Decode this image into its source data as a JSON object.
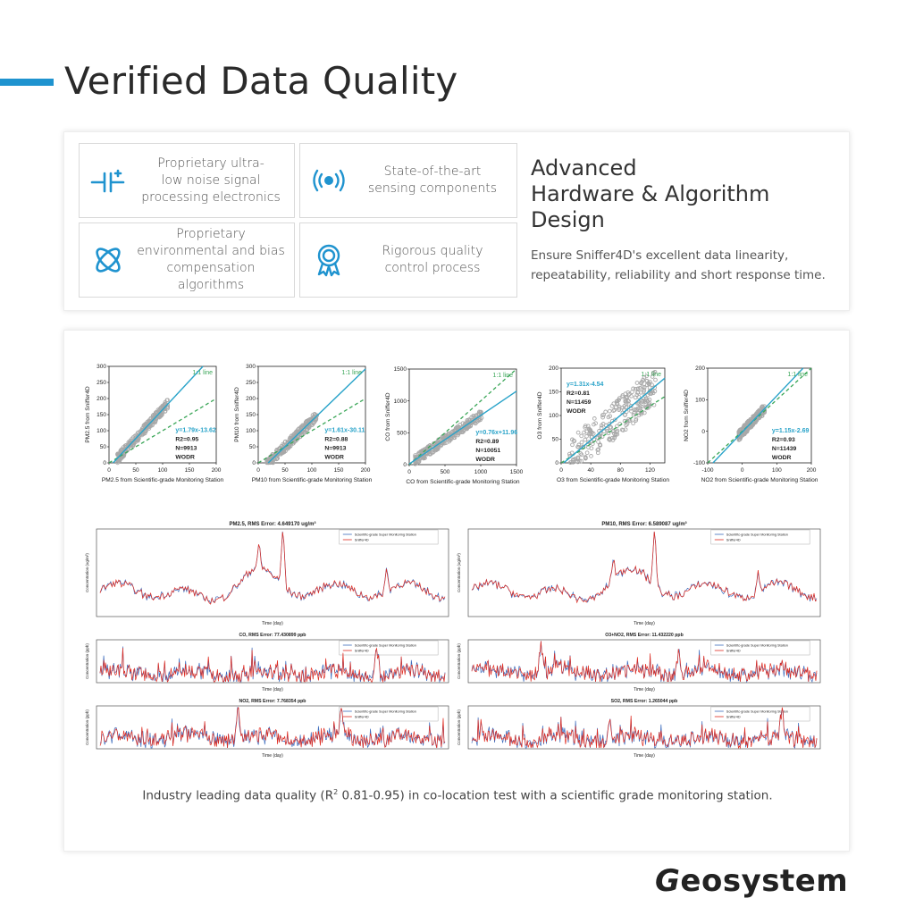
{
  "header": {
    "title": "Verified Data Quality"
  },
  "features": [
    {
      "icon": "capacitor-icon",
      "label": "Proprietary ultra-\nlow noise signal\nprocessing electronics"
    },
    {
      "icon": "sensor-signal-icon",
      "label": "State-of-the-art\nsensing components"
    },
    {
      "icon": "atom-icon",
      "label": "Proprietary\nenvironmental and bias\ncompensation algorithms"
    },
    {
      "icon": "award-ribbon-icon",
      "label": "Rigorous quality\ncontrol process"
    }
  ],
  "advanced": {
    "title": "Advanced\nHardware & Algorithm\nDesign",
    "description": "Ensure Sniffer4D's excellent data linearity, repeatability, reliability and short response time."
  },
  "caption": {
    "pre": "Industry leading data quality (R",
    "sup": "2",
    "post": " 0.81-0.95) in co-location test with a scientific grade monitoring station."
  },
  "logo": {
    "first": "G",
    "rest": "eosystem"
  },
  "colors": {
    "accent": "#1f93cf",
    "fit_line": "#29a3c9",
    "one_to_one": "#3aa657",
    "points": "#a8a8a8",
    "station": "#e02a1f",
    "sniffer": "#3b6bbd"
  },
  "chart_data": [
    {
      "type": "scatter",
      "xlabel": "PM2.5 from Scientific-grade Monitoring Station",
      "ylabel": "PM2.5 from Sniffer4D",
      "xlim": [
        0,
        200
      ],
      "ylim": [
        0,
        300
      ],
      "xticks": [
        0,
        50,
        100,
        150,
        200
      ],
      "yticks": [
        0,
        50,
        100,
        150,
        200,
        250,
        300
      ],
      "one_to_one_label": "1:1 line",
      "equation": "y=1.79x-13.62",
      "r2": "R2=0.95",
      "n": "N=9913",
      "site": "WODR",
      "slope": 1.79,
      "intercept": -13.62
    },
    {
      "type": "scatter",
      "xlabel": "PM10 from Scientific-grade Monitoring Station",
      "ylabel": "PM10 from Sniffer4D",
      "xlim": [
        0,
        200
      ],
      "ylim": [
        0,
        300
      ],
      "xticks": [
        0,
        50,
        100,
        150,
        200
      ],
      "yticks": [
        0,
        50,
        100,
        150,
        200,
        250,
        300
      ],
      "one_to_one_label": "1:1 line",
      "equation": "y=1.61x-30.11",
      "r2": "R2=0.88",
      "n": "N=9913",
      "site": "WODR",
      "slope": 1.61,
      "intercept": -30.11
    },
    {
      "type": "scatter",
      "xlabel": "CO from Scientific-grade Monitoring Station",
      "ylabel": "CO from Sniffer4D",
      "xlim": [
        0,
        1500
      ],
      "ylim": [
        0,
        1500
      ],
      "xticks": [
        0,
        500,
        1000,
        1500
      ],
      "yticks": [
        0,
        500,
        1000,
        1500
      ],
      "one_to_one_label": "1:1 line",
      "equation": "y=0.76x+11.96",
      "r2": "R2=0.89",
      "n": "N=10051",
      "site": "WODR",
      "slope": 0.76,
      "intercept": 11.96
    },
    {
      "type": "scatter",
      "xlabel": "O3 from Scientific-grade Monitoring Station",
      "ylabel": "O3 from Sniffer4D",
      "xlim": [
        0,
        140
      ],
      "ylim": [
        0,
        200
      ],
      "xticks": [
        0,
        40,
        80,
        120
      ],
      "yticks": [
        0,
        50,
        100,
        150,
        200
      ],
      "one_to_one_label": "1:1 line",
      "equation": "y=1.31x-4.54",
      "r2": "R2=0.81",
      "n": "N=11459",
      "site": "WODR",
      "slope": 1.31,
      "intercept": -4.54
    },
    {
      "type": "scatter",
      "xlabel": "NO2 from Scientific-grade Monitoring Station",
      "ylabel": "NO2 from Sniffer4D",
      "xlim": [
        -100,
        200
      ],
      "ylim": [
        -100,
        200
      ],
      "xticks": [
        -100,
        0,
        100,
        200
      ],
      "yticks": [
        -100,
        0,
        100,
        200
      ],
      "one_to_one_label": "1:1 line",
      "equation": "y=1.15x-2.69",
      "r2": "R2=0.93",
      "n": "N=11439",
      "site": "WODR",
      "slope": 1.15,
      "intercept": -2.69
    },
    {
      "type": "line",
      "title": "PM2.5,  RMS Error: 4.649170 ug/m³",
      "xlabel": "Time (day)",
      "ylabel": "Concentration (ug/m³)",
      "legend": [
        "Scientific-grade Super Monitoring Station",
        "Sniffer4D"
      ]
    },
    {
      "type": "line",
      "title": "PM10,  RMS Error: 6.589087 ug/m³",
      "xlabel": "Time (day)",
      "ylabel": "Concentration (ug/m³)",
      "legend": [
        "Scientific-grade Super Monitoring Station",
        "Sniffer4D"
      ]
    },
    {
      "type": "line",
      "title": "CO,  RMS Error: 77.430899 ppb",
      "xlabel": "Time (day)",
      "ylabel": "Concentration (ppb)",
      "legend": [
        "Scientific-grade Super Monitoring Station",
        "Sniffer4D"
      ]
    },
    {
      "type": "line",
      "title": "O3+NO2,  RMS Error: 11.432220 ppb",
      "xlabel": "Time (day)",
      "ylabel": "Concentration (ppb)",
      "legend": [
        "Scientific-grade Super Monitoring Station",
        "Sniffer4D"
      ]
    },
    {
      "type": "line",
      "title": "NO2,  RMS Error: 7.768354 ppb",
      "xlabel": "Time (day)",
      "ylabel": "Concentration (ppb)",
      "legend": [
        "Scientific-grade Super Monitoring Station",
        "Sniffer4D"
      ]
    },
    {
      "type": "line",
      "title": "SO2,  RMS Error: 1.265044 ppb",
      "xlabel": "Time (day)",
      "ylabel": "Concentration (ppb)",
      "legend": [
        "Scientific-grade Super Monitoring Station",
        "Sniffer4D"
      ]
    }
  ]
}
